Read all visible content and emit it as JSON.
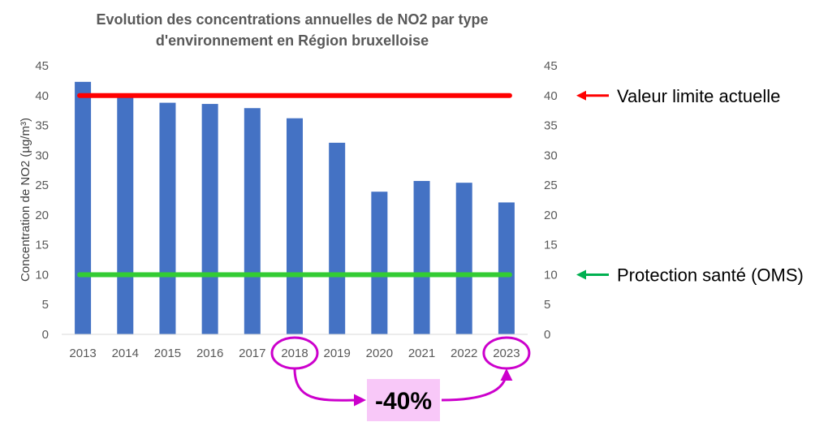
{
  "chart_data": {
    "type": "bar",
    "title_line1": "Evolution des concentrations annuelles de NO2 par type",
    "title_line2": "d'environnement en Région bruxelloise",
    "ylabel": "Concentration de NO2 (µg/m³)",
    "categories": [
      "2013",
      "2014",
      "2015",
      "2016",
      "2017",
      "2018",
      "2019",
      "2020",
      "2021",
      "2022",
      "2023"
    ],
    "values": [
      42.3,
      39.7,
      38.8,
      38.6,
      37.9,
      36.2,
      32.1,
      23.9,
      25.7,
      25.4,
      22.1
    ],
    "ylim": [
      0,
      45
    ],
    "yticks": [
      0,
      5,
      10,
      15,
      20,
      25,
      30,
      35,
      40,
      45
    ],
    "secondary_y_axis": true,
    "grid": false,
    "bar_color": "#4472C4",
    "reference_lines": [
      {
        "name": "Valeur limite actuelle",
        "value": 40,
        "color": "#FF0000",
        "arrow_color": "#FF0000"
      },
      {
        "name": "Protection santé (OMS)",
        "value": 10,
        "color": "#33CC33",
        "arrow_color": "#00B050"
      }
    ],
    "annotation": {
      "text": "-40%",
      "from": "2018",
      "to": "2023",
      "color": "#CC00CC",
      "box_color": "#F8C8F8"
    }
  }
}
